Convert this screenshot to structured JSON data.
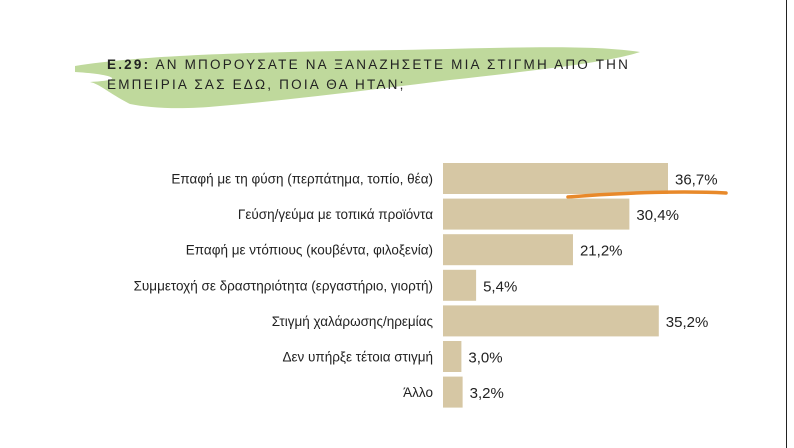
{
  "header": {
    "code": "Ε.29:",
    "question": "ΑΝ ΜΠΟΡΟΥΣΑΤΕ ΝΑ ΞΑΝΑΖΗΣΕΤΕ ΜΙΑ ΣΤΙΓΜΗ ΑΠΟ ΤΗΝ",
    "question_line2": "ΕΜΠΕΙΡΙΑ ΣΑΣ ΕΔΩ, ΠΟΙΑ ΘΑ ΗΤΑΝ;"
  },
  "colors": {
    "bar": "#d6c7a4",
    "brush": "#bfd99c",
    "accent": "#e8892a"
  },
  "chart_data": {
    "type": "bar",
    "orientation": "horizontal",
    "categories": [
      "Επαφή με τη φύση (περπάτημα, τοπίο, θέα)",
      "Γεύση/γεύμα με τοπικά προϊόντα",
      "Επαφή με ντόπιους (κουβέντα, φιλοξενία)",
      "Συμμετοχή σε δραστηριότητα (εργαστήριο, γιορτή)",
      "Στιγμή χαλάρωσης/ηρεμίας",
      "Δεν υπήρξε τέτοια στιγμή",
      "Άλλο"
    ],
    "values": [
      36.7,
      30.4,
      21.2,
      5.4,
      35.2,
      3.0,
      3.2
    ],
    "labels": [
      "36,7%",
      "30,4%",
      "21,2%",
      "5,4%",
      "35,2%",
      "3,0%",
      "3,2%"
    ],
    "unit": "%"
  }
}
